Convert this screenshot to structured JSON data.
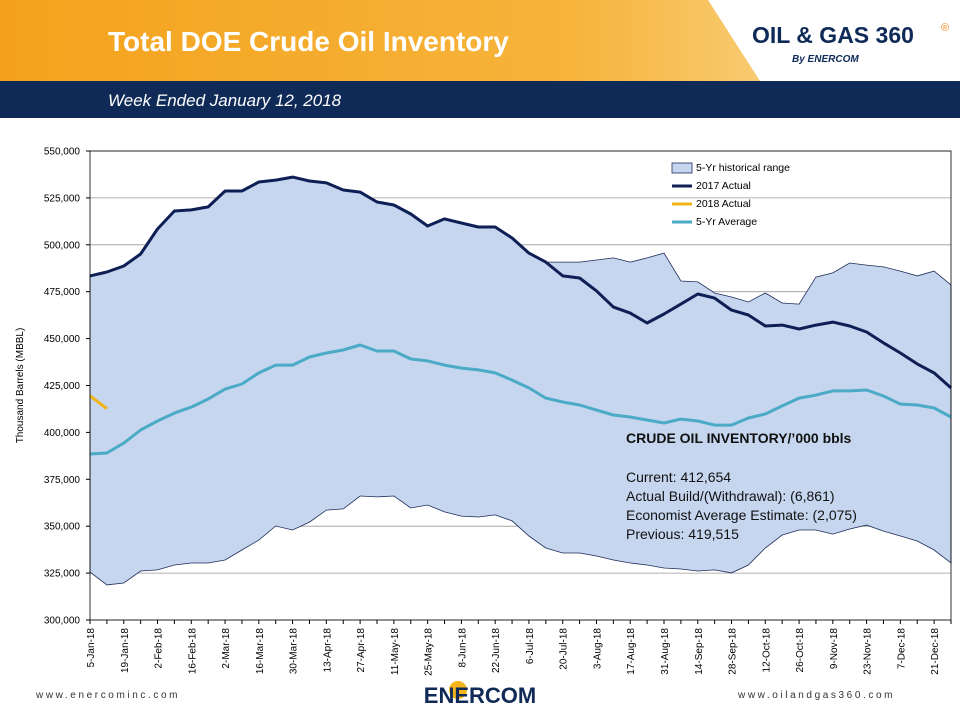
{
  "header": {
    "title": "Total DOE Crude Oil Inventory",
    "subtitle": "Week Ended January 12, 2018",
    "logo": "OIL & GAS 360",
    "logo_mark": "®",
    "logo_by": "By ENERCOM"
  },
  "footer": {
    "left": "www.enercominc.com",
    "center": "ENERCOM",
    "right": "www.oilandgas360.com"
  },
  "chart_data": {
    "type": "line",
    "y_label": "Thousand Barrels (MBBL)",
    "categories": [
      "5-Jan-18",
      null,
      "19-Jan-18",
      null,
      "2-Feb-18",
      null,
      "16-Feb-18",
      null,
      "2-Mar-18",
      null,
      "16-Mar-18",
      null,
      "30-Mar-18",
      null,
      "13-Apr-18",
      null,
      "27-Apr-18",
      null,
      "11-May-18",
      null,
      "25-May-18",
      null,
      "8-Jun-18",
      null,
      "22-Jun-18",
      null,
      "6-Jul-18",
      null,
      "20-Jul-18",
      null,
      "3-Aug-18",
      null,
      "17-Aug-18",
      null,
      "31-Aug-18",
      null,
      "14-Sep-18",
      null,
      "28-Sep-18",
      null,
      "12-Oct-18",
      null,
      "26-Oct-18",
      null,
      "9-Nov-18",
      null,
      "23-Nov-18",
      null,
      "7-Dec-18",
      null,
      "21-Dec-18",
      null
    ],
    "series": [
      {
        "name": "5-Yr historical range",
        "color": "#c6d6ef",
        "high": [
          483400,
          485500,
          488700,
          495100,
          508400,
          518000,
          518600,
          520200,
          528700,
          528700,
          533500,
          534500,
          536100,
          534000,
          533000,
          529200,
          528100,
          522800,
          521200,
          516400,
          510000,
          513800,
          511600,
          509500,
          509500,
          503600,
          495600,
          490800,
          490800,
          490800,
          491900,
          493000,
          490800,
          493000,
          495600,
          480700,
          480200,
          474300,
          472200,
          469500,
          474300,
          469000,
          468400,
          482800,
          485000,
          490300,
          489200,
          488200,
          486000,
          483400,
          486000,
          478600
        ],
        "low": [
          325600,
          318700,
          319700,
          326100,
          326700,
          329300,
          330400,
          330400,
          332000,
          337300,
          342600,
          350100,
          348000,
          352200,
          358600,
          359200,
          366100,
          365600,
          366100,
          359700,
          361300,
          357600,
          355400,
          354900,
          356000,
          352800,
          344800,
          338400,
          335700,
          335700,
          334100,
          332000,
          330400,
          329300,
          327700,
          327200,
          326100,
          326700,
          325100,
          329300,
          338400,
          345300,
          348000,
          348000,
          345800,
          348500,
          350600,
          347400,
          344800,
          342100,
          337300,
          330400
        ]
      },
      {
        "name": "2017 Actual",
        "color": "#0d1f55",
        "values": [
          483400,
          485500,
          488700,
          495100,
          508400,
          518000,
          518600,
          520200,
          528700,
          528700,
          533500,
          534500,
          536100,
          534000,
          533000,
          529200,
          528100,
          522800,
          521200,
          516400,
          510000,
          513800,
          511600,
          509500,
          509500,
          503600,
          495600,
          490800,
          483400,
          482300,
          475400,
          466800,
          463600,
          458300,
          463100,
          468400,
          473800,
          471600,
          465200,
          462600,
          456700,
          457200,
          455100,
          457200,
          458800,
          456700,
          453500,
          447700,
          442300,
          436500,
          431700,
          423700
        ]
      },
      {
        "name": "2018 Actual",
        "color": "#f2b415",
        "values": [
          419515,
          412654,
          null,
          null,
          null,
          null,
          null,
          null,
          null,
          null,
          null,
          null,
          null,
          null,
          null,
          null,
          null,
          null,
          null,
          null,
          null,
          null,
          null,
          null,
          null,
          null,
          null,
          null,
          null,
          null,
          null,
          null,
          null,
          null,
          null,
          null,
          null,
          null,
          null,
          null,
          null,
          null,
          null,
          null,
          null,
          null,
          null,
          null,
          null,
          null,
          null,
          null
        ]
      },
      {
        "name": "5-Yr Average",
        "color": "#4baac6",
        "values": [
          388500,
          389000,
          394300,
          401300,
          406100,
          410300,
          413500,
          417800,
          423100,
          425800,
          431700,
          435900,
          435900,
          440200,
          442300,
          443900,
          446600,
          443400,
          443400,
          439100,
          438100,
          435900,
          434300,
          433300,
          431700,
          427900,
          423700,
          418300,
          416200,
          414600,
          411900,
          409300,
          408200,
          406600,
          405000,
          407100,
          406100,
          403900,
          403900,
          407700,
          409800,
          414100,
          418300,
          419900,
          422100,
          422100,
          422600,
          419400,
          415100,
          414600,
          413000,
          408200
        ]
      }
    ],
    "ylim": [
      300000,
      550000
    ],
    "yticks": [
      {
        "value": 300000,
        "label": "300,000"
      },
      {
        "value": 325000,
        "label": "325,000"
      },
      {
        "value": 350000,
        "label": "350,000"
      },
      {
        "value": 375000,
        "label": "375,000"
      },
      {
        "value": 400000,
        "label": "400,000"
      },
      {
        "value": 425000,
        "label": "425,000"
      },
      {
        "value": 450000,
        "label": "450,000"
      },
      {
        "value": 475000,
        "label": "475,000"
      },
      {
        "value": 500000,
        "label": "500,000"
      },
      {
        "value": 525000,
        "label": "525,000"
      },
      {
        "value": 550000,
        "label": "550,000"
      }
    ],
    "grid": true,
    "legend": "top-right",
    "annotations": [
      "CRUDE OIL INVENTORY/’000 bbls",
      "Current: 412,654",
      "Actual Build/(Withdrawal): (6,861)",
      "Economist Average Estimate: (2,075)",
      "Previous: 419,515"
    ]
  }
}
